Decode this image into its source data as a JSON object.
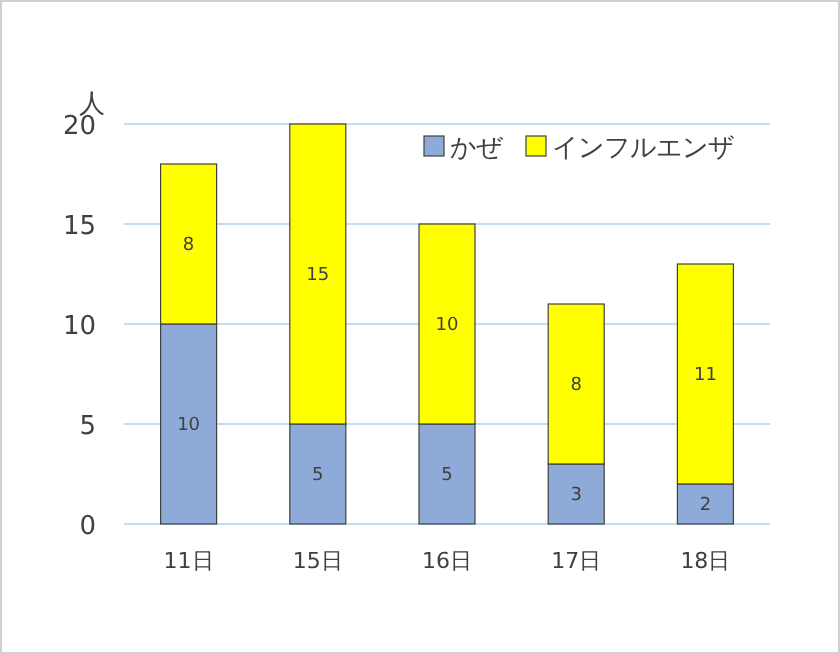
{
  "chart_data": {
    "type": "bar",
    "stacked": true,
    "ylabel": "人",
    "categories": [
      "11日",
      "15日",
      "16日",
      "17日",
      "18日"
    ],
    "series": [
      {
        "name": "かぜ",
        "color": "#8eaad8",
        "values": [
          10,
          5,
          5,
          3,
          2
        ]
      },
      {
        "name": "インフルエンザ",
        "color": "#ffff00",
        "values": [
          8,
          15,
          10,
          8,
          11
        ]
      }
    ],
    "ylim": [
      0,
      20
    ],
    "yticks": [
      0,
      5,
      10,
      15,
      20
    ],
    "grid": "y",
    "legend": "top right",
    "data_labels": true
  }
}
